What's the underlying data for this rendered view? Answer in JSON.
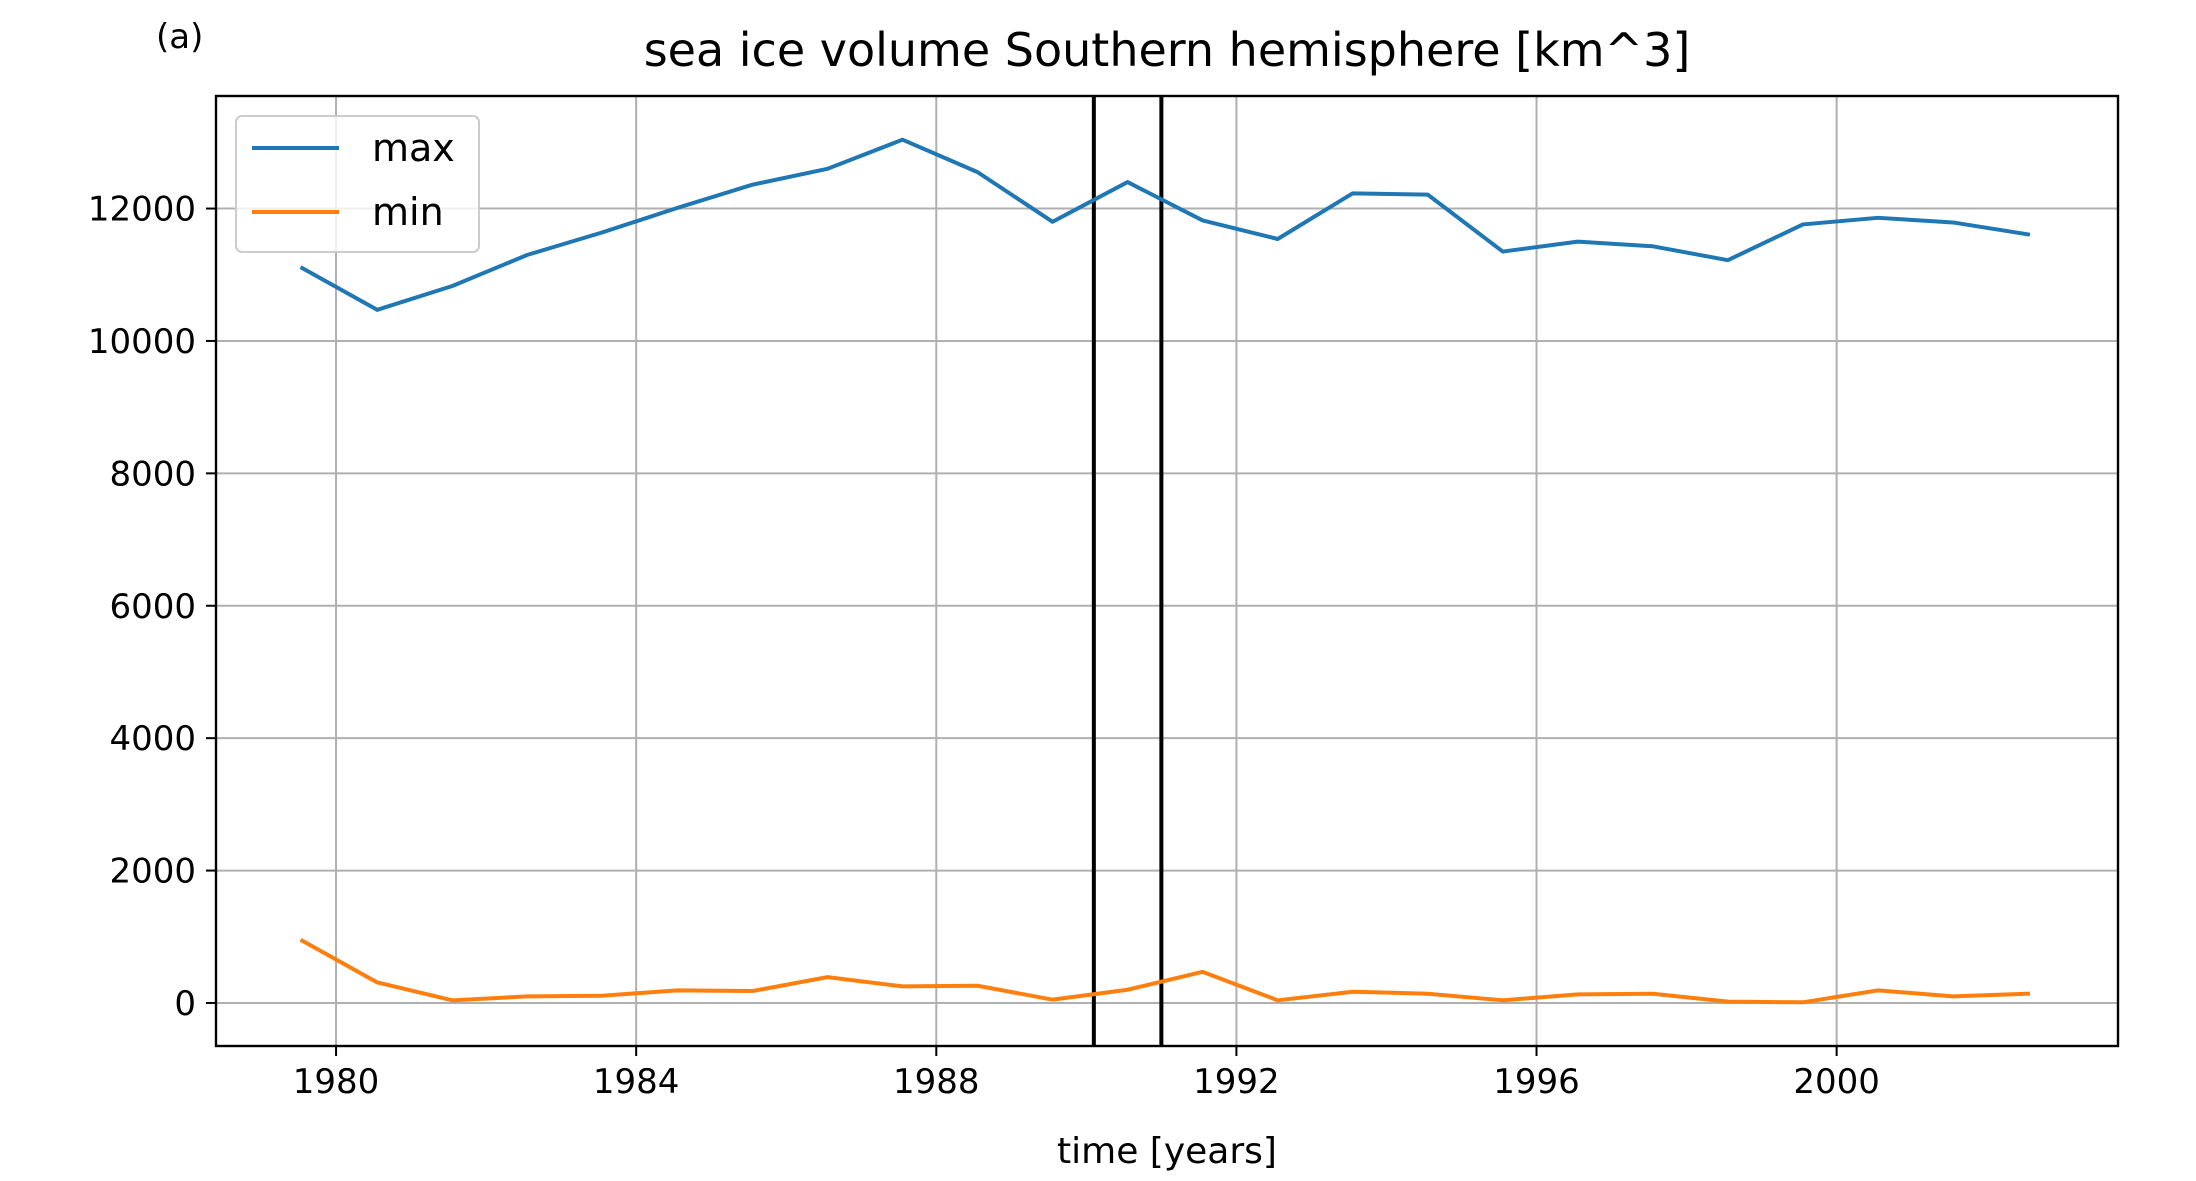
{
  "panel_label": "(a)",
  "chart_data": {
    "type": "line",
    "title": "sea ice volume Southern hemisphere [km^3]",
    "xlabel": "time [years]",
    "ylabel": "",
    "xlim": [
      1978.4,
      2003.75
    ],
    "ylim": [
      -650,
      13700
    ],
    "xticks": [
      1980,
      1984,
      1988,
      1992,
      1996,
      2000
    ],
    "yticks": [
      0,
      2000,
      4000,
      6000,
      8000,
      10000,
      12000
    ],
    "grid": true,
    "legend_position": "top-left",
    "vertical_lines": [
      1990.1,
      1991.0
    ],
    "series": [
      {
        "name": "max",
        "color": "#1f77b4",
        "x": [
          1979.55,
          1980.55,
          1981.55,
          1982.55,
          1983.55,
          1984.55,
          1985.55,
          1986.55,
          1987.55,
          1988.55,
          1989.55,
          1990.55,
          1991.55,
          1992.55,
          1993.55,
          1994.55,
          1995.55,
          1996.55,
          1997.55,
          1998.55,
          1999.55,
          2000.55,
          2001.55,
          2002.55
        ],
        "values": [
          11100,
          10470,
          10830,
          11300,
          11640,
          12010,
          12360,
          12600,
          13040,
          12550,
          11800,
          12400,
          11820,
          11540,
          12230,
          12210,
          11350,
          11500,
          11430,
          11220,
          11760,
          11860,
          11790,
          11610
        ]
      },
      {
        "name": "min",
        "color": "#ff7f0e",
        "x": [
          1979.55,
          1980.55,
          1981.55,
          1982.55,
          1983.55,
          1984.55,
          1985.55,
          1986.55,
          1987.55,
          1988.55,
          1989.55,
          1990.55,
          1991.55,
          1992.55,
          1993.55,
          1994.55,
          1995.55,
          1996.55,
          1997.55,
          1998.55,
          1999.55,
          2000.55,
          2001.55,
          2002.55
        ],
        "values": [
          940,
          310,
          40,
          100,
          110,
          190,
          180,
          390,
          250,
          260,
          50,
          200,
          470,
          40,
          170,
          140,
          40,
          130,
          140,
          20,
          10,
          190,
          100,
          140
        ]
      }
    ]
  },
  "colors": {
    "grid": "#b0b0b0",
    "vline": "#000000"
  }
}
